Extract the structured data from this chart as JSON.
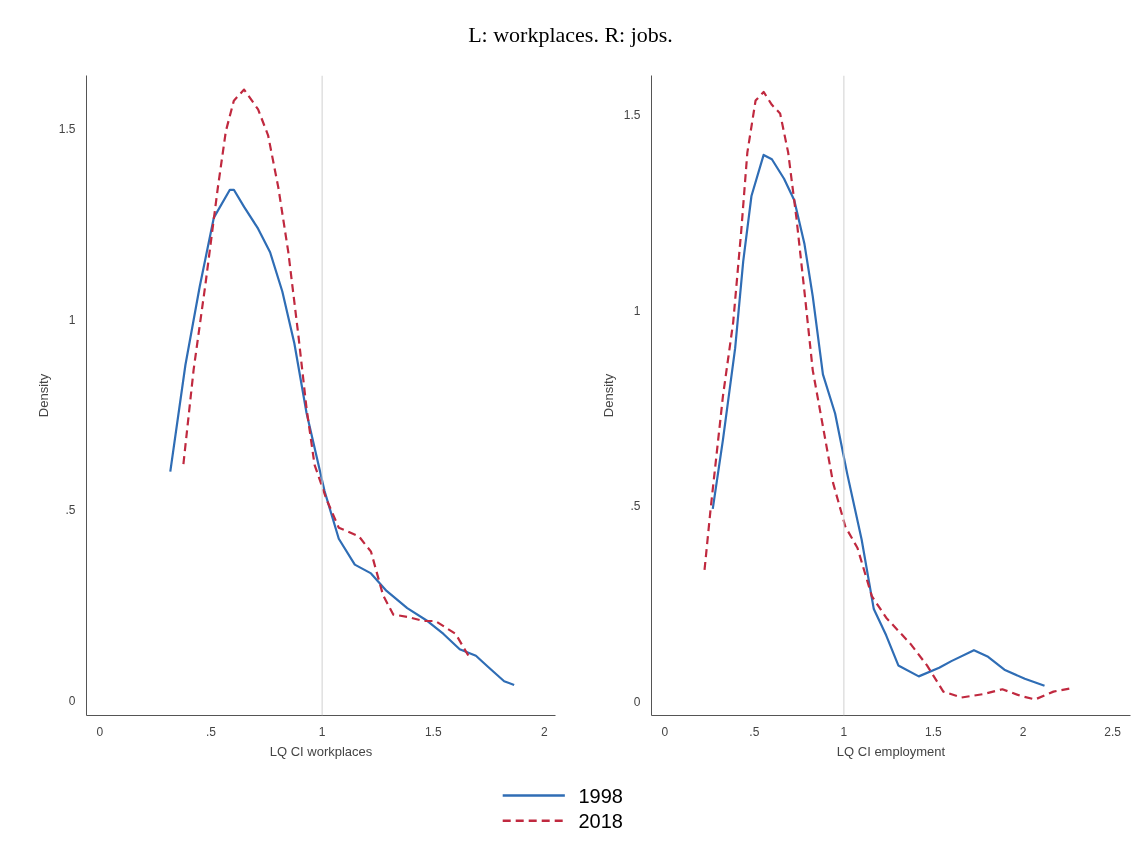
{
  "chart_data": [
    {
      "type": "line",
      "title": "L: workplaces. R: jobs.",
      "xlabel": "LQ CI workplaces",
      "ylabel": "Density",
      "legend": "bottom",
      "grid": false,
      "xlim": [
        -0.06,
        2.05
      ],
      "xticks": [
        0,
        {
          "value": 0.5,
          "label": ".5"
        },
        1,
        1.5,
        2
      ],
      "ylim": [
        -0.04,
        1.64
      ],
      "yticks": [
        0,
        {
          "value": 0.5,
          "label": ".5"
        },
        1,
        1.5
      ],
      "ref_lines": [
        {
          "axis": "x",
          "value": 1,
          "color": "#d0d0d0"
        }
      ],
      "series": [
        {
          "name": "1998",
          "color": "#2f6db5",
          "line_style": "solid",
          "x": [
            0.317,
            0.385,
            0.449,
            0.513,
            0.585,
            0.603,
            0.649,
            0.712,
            0.766,
            0.821,
            0.875,
            0.93,
            1.011,
            1.075,
            1.147,
            1.22,
            1.29,
            1.383,
            1.474,
            1.546,
            1.619,
            1.692,
            1.746,
            1.819,
            1.864
          ],
          "values": [
            0.6,
            0.88,
            1.085,
            1.267,
            1.34,
            1.34,
            1.295,
            1.238,
            1.176,
            1.073,
            0.937,
            0.754,
            0.549,
            0.424,
            0.356,
            0.333,
            0.287,
            0.242,
            0.208,
            0.174,
            0.134,
            0.117,
            0.088,
            0.05,
            0.04
          ]
        },
        {
          "name": "2018",
          "color": "#c0293f",
          "line_style": "dashed",
          "x": [
            0.376,
            0.422,
            0.476,
            0.531,
            0.567,
            0.603,
            0.649,
            0.712,
            0.757,
            0.803,
            0.848,
            0.893,
            0.93,
            0.966,
            1.02,
            1.075,
            1.166,
            1.22,
            1.274,
            1.32,
            1.383,
            1.456,
            1.51,
            1.601,
            1.664
          ],
          "values": [
            0.62,
            0.868,
            1.096,
            1.346,
            1.494,
            1.574,
            1.603,
            1.551,
            1.483,
            1.346,
            1.176,
            0.959,
            0.766,
            0.618,
            0.527,
            0.453,
            0.43,
            0.39,
            0.276,
            0.225,
            0.219,
            0.208,
            0.208,
            0.174,
            0.111
          ]
        }
      ]
    },
    {
      "type": "line",
      "xlabel": "LQ CI employment",
      "ylabel": "Density",
      "grid": false,
      "xlim": [
        -0.074,
        2.6
      ],
      "xticks": [
        0,
        {
          "value": 0.5,
          "label": ".5"
        },
        1,
        1.5,
        2,
        2.5
      ],
      "ylim": [
        -0.036,
        1.6
      ],
      "yticks": [
        0,
        {
          "value": 0.5,
          "label": ".5"
        },
        1,
        1.5
      ],
      "ref_lines": [
        {
          "axis": "x",
          "value": 1,
          "color": "#d0d0d0"
        }
      ],
      "series": [
        {
          "color": "#2f6db5",
          "line_style": "solid",
          "x": [
            0.268,
            0.325,
            0.393,
            0.438,
            0.484,
            0.552,
            0.598,
            0.666,
            0.723,
            0.78,
            0.826,
            0.883,
            0.951,
            1.019,
            1.099,
            1.167,
            1.236,
            1.304,
            1.418,
            1.532,
            1.6,
            1.726,
            1.805,
            1.896,
            2.01,
            2.12
          ],
          "values": [
            0.492,
            0.669,
            0.903,
            1.125,
            1.292,
            1.397,
            1.386,
            1.336,
            1.281,
            1.169,
            1.036,
            0.836,
            0.736,
            0.581,
            0.414,
            0.236,
            0.169,
            0.092,
            0.064,
            0.086,
            0.103,
            0.131,
            0.114,
            0.081,
            0.058,
            0.04
          ]
        },
        {
          "color": "#c0293f",
          "line_style": "dashed",
          "x": [
            0.222,
            0.256,
            0.325,
            0.382,
            0.427,
            0.461,
            0.507,
            0.552,
            0.598,
            0.644,
            0.689,
            0.735,
            0.78,
            0.826,
            0.883,
            0.94,
            1.008,
            1.076,
            1.156,
            1.236,
            1.372,
            1.464,
            1.555,
            1.657,
            1.782,
            1.885,
            1.987,
            2.067,
            2.17,
            2.26
          ],
          "values": [
            0.336,
            0.492,
            0.781,
            0.969,
            1.203,
            1.403,
            1.536,
            1.558,
            1.525,
            1.503,
            1.403,
            1.236,
            1.047,
            0.847,
            0.703,
            0.558,
            0.447,
            0.392,
            0.269,
            0.214,
            0.147,
            0.092,
            0.025,
            0.01,
            0.019,
            0.031,
            0.014,
            0.005,
            0.025,
            0.033
          ]
        }
      ]
    }
  ]
}
